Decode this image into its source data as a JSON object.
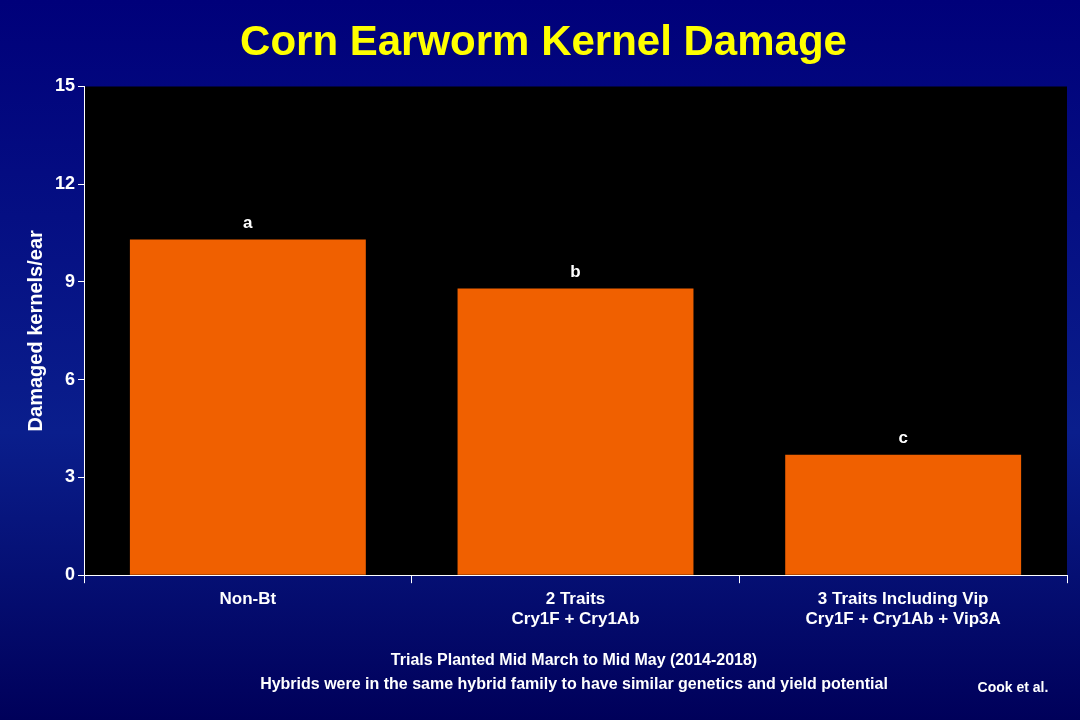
{
  "chart_data": {
    "type": "bar",
    "title": "Corn Earworm Kernel Damage",
    "ylabel": "Damaged kernels/ear",
    "categories": [
      "Non-Bt",
      "2 Traits\nCry1F + Cry1Ab",
      "3 Traits Including Vip\nCry1F + Cry1Ab + Vip3A"
    ],
    "values": [
      10.3,
      8.8,
      3.7
    ],
    "color": "#f06000",
    "ylim": [
      0,
      15
    ],
    "yticks": [
      0,
      3,
      6,
      9,
      12,
      15
    ],
    "grid": false,
    "annotations": [
      {
        "text": "a",
        "x": "Non-Bt",
        "y": 10.3
      },
      {
        "text": "b",
        "x": "2 Traits\nCry1F + Cry1Ab",
        "y": 8.8
      },
      {
        "text": "c",
        "x": "3 Traits Including Vip\nCry1F + Cry1Ab + Vip3A",
        "y": 3.7
      },
      "Trials Planted Mid March to Mid May (2014-2018)",
      "Hybrids were in the same hybrid family to have similar genetics and yield potential",
      "Cook et al."
    ]
  }
}
